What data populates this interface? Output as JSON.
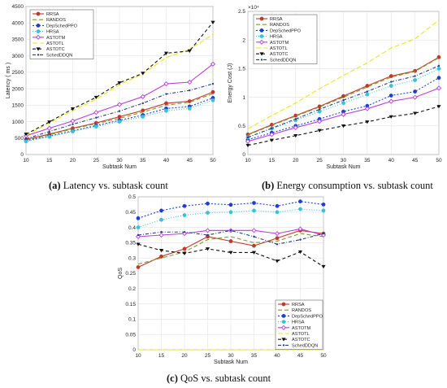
{
  "captions": {
    "a_label": "(a)",
    "a_text": "Latency vs. subtask count",
    "b_label": "(b)",
    "b_text": "Energy consumption vs. subtask count",
    "c_label": "(c)",
    "c_text": "QoS vs. subtask count"
  },
  "chart_data": [
    {
      "id": "a",
      "type": "line",
      "xlabel": "Subtask Num",
      "ylabel": "Latency ( ms )",
      "xlim": [
        10,
        50
      ],
      "ylim": [
        0,
        4500
      ],
      "xticks": [
        10,
        15,
        20,
        25,
        30,
        35,
        40,
        45,
        50
      ],
      "yticks": [
        0,
        500,
        1000,
        1500,
        2000,
        2500,
        3000,
        3500,
        4000,
        4500
      ],
      "grid": true,
      "legend_position": "top-left",
      "x": [
        10,
        15,
        20,
        25,
        30,
        35,
        40,
        45,
        50
      ],
      "series": [
        {
          "name": "RRSA",
          "color": "#c0392b",
          "marker": "circle",
          "dash": "",
          "values": [
            460,
            620,
            800,
            960,
            1150,
            1340,
            1560,
            1620,
            1900
          ]
        },
        {
          "name": "RANDOS",
          "color": "#7f9a2e",
          "marker": "none",
          "dash": "5,3",
          "values": [
            440,
            600,
            780,
            940,
            1100,
            1290,
            1500,
            1590,
            1850
          ]
        },
        {
          "name": "DepSchedPPO",
          "color": "#1f3fd1",
          "marker": "circle",
          "dash": "2,2",
          "values": [
            420,
            560,
            720,
            880,
            1040,
            1200,
            1400,
            1460,
            1720
          ]
        },
        {
          "name": "HRSA",
          "color": "#35c4d8",
          "marker": "circle",
          "dash": "1,2",
          "values": [
            400,
            540,
            700,
            850,
            1000,
            1150,
            1330,
            1400,
            1650
          ]
        },
        {
          "name": "ASTOTM",
          "color": "#b43fd6",
          "marker": "diamond",
          "dash": "",
          "values": [
            570,
            800,
            1020,
            1280,
            1520,
            1760,
            2150,
            2200,
            2750
          ]
        },
        {
          "name": "ASTOTL",
          "color": "#e8e81a",
          "marker": "none",
          "dash": "6,3",
          "values": [
            580,
            960,
            1330,
            1680,
            2120,
            2450,
            2950,
            3200,
            3650
          ]
        },
        {
          "name": "ASTOTC",
          "color": "#111111",
          "marker": "triangle-down",
          "dash": "4,3",
          "values": [
            620,
            990,
            1390,
            1740,
            2180,
            2470,
            3080,
            3150,
            4020
          ]
        },
        {
          "name": "SchedDDQN",
          "color": "#2a3a8a",
          "marker": "dot",
          "dash": "4,2,1,2",
          "values": [
            480,
            700,
            920,
            1120,
            1320,
            1560,
            1840,
            1950,
            2150
          ]
        }
      ]
    },
    {
      "id": "b",
      "type": "line",
      "xlabel": "Subtask Num",
      "ylabel": "Energy Cost (J)",
      "exponent": "×10⁴",
      "xlim": [
        10,
        50
      ],
      "ylim": [
        0,
        2.5
      ],
      "xticks": [
        10,
        15,
        20,
        25,
        30,
        35,
        40,
        45,
        50
      ],
      "yticks": [
        0,
        0.5,
        1,
        1.5,
        2,
        2.5
      ],
      "grid": true,
      "legend_position": "top-left",
      "x": [
        10,
        15,
        20,
        25,
        30,
        35,
        40,
        45,
        50
      ],
      "series": [
        {
          "name": "RRSA",
          "color": "#c0392b",
          "marker": "circle",
          "dash": "",
          "values": [
            0.35,
            0.52,
            0.68,
            0.84,
            1.02,
            1.2,
            1.37,
            1.46,
            1.7
          ]
        },
        {
          "name": "RANDOS",
          "color": "#7f9a2e",
          "marker": "none",
          "dash": "5,3",
          "values": [
            0.34,
            0.51,
            0.67,
            0.83,
            1.0,
            1.18,
            1.35,
            1.45,
            1.69
          ]
        },
        {
          "name": "DepSchedPPO",
          "color": "#1f3fd1",
          "marker": "circle",
          "dash": "2,2",
          "values": [
            0.26,
            0.38,
            0.5,
            0.62,
            0.75,
            0.85,
            1.03,
            1.1,
            1.34
          ]
        },
        {
          "name": "HRSA",
          "color": "#35c4d8",
          "marker": "circle",
          "dash": "1,2",
          "values": [
            0.3,
            0.45,
            0.6,
            0.75,
            0.9,
            1.05,
            1.2,
            1.3,
            1.5
          ]
        },
        {
          "name": "ASTOTM",
          "color": "#b43fd6",
          "marker": "diamond",
          "dash": "",
          "values": [
            0.23,
            0.35,
            0.47,
            0.58,
            0.7,
            0.8,
            0.93,
            1.0,
            1.16
          ]
        },
        {
          "name": "ASTOTL",
          "color": "#e8e81a",
          "marker": "none",
          "dash": "6,3",
          "values": [
            0.45,
            0.68,
            0.9,
            1.15,
            1.38,
            1.6,
            1.86,
            2.02,
            2.35
          ]
        },
        {
          "name": "ASTOTC",
          "color": "#111111",
          "marker": "triangle-down",
          "dash": "4,3",
          "values": [
            0.16,
            0.25,
            0.33,
            0.42,
            0.5,
            0.57,
            0.66,
            0.72,
            0.84
          ]
        },
        {
          "name": "SchedDDQN",
          "color": "#2a3a8a",
          "marker": "dot",
          "dash": "4,2,1,2",
          "values": [
            0.3,
            0.46,
            0.62,
            0.79,
            0.95,
            1.1,
            1.27,
            1.37,
            1.55
          ]
        }
      ]
    },
    {
      "id": "c",
      "type": "line",
      "xlabel": "Subtask Num",
      "ylabel": "QoS",
      "xlim": [
        10,
        50
      ],
      "ylim": [
        0,
        0.5
      ],
      "xticks": [
        10,
        15,
        20,
        25,
        30,
        35,
        40,
        45,
        50
      ],
      "yticks": [
        0,
        0.05,
        0.1,
        0.15,
        0.2,
        0.25,
        0.3,
        0.35,
        0.4,
        0.45,
        0.5
      ],
      "grid": true,
      "legend_position": "bottom-right",
      "x": [
        10,
        15,
        20,
        25,
        30,
        35,
        40,
        45,
        50
      ],
      "series": [
        {
          "name": "RRSA",
          "color": "#c0392b",
          "marker": "circle",
          "dash": "",
          "values": [
            0.27,
            0.305,
            0.33,
            0.37,
            0.355,
            0.34,
            0.365,
            0.39,
            0.38
          ]
        },
        {
          "name": "RANDOS",
          "color": "#7f9a2e",
          "marker": "none",
          "dash": "5,3",
          "values": [
            0.28,
            0.3,
            0.32,
            0.36,
            0.37,
            0.35,
            0.355,
            0.38,
            0.37
          ]
        },
        {
          "name": "DepSchedPPO",
          "color": "#1f3fd1",
          "marker": "circle",
          "dash": "2,2",
          "values": [
            0.43,
            0.455,
            0.47,
            0.478,
            0.474,
            0.48,
            0.47,
            0.485,
            0.475
          ]
        },
        {
          "name": "HRSA",
          "color": "#35c4d8",
          "marker": "circle",
          "dash": "1,2",
          "values": [
            0.4,
            0.425,
            0.44,
            0.448,
            0.45,
            0.455,
            0.45,
            0.46,
            0.455
          ]
        },
        {
          "name": "ASTOTM",
          "color": "#b43fd6",
          "marker": "diamond",
          "dash": "",
          "values": [
            0.37,
            0.375,
            0.38,
            0.39,
            0.39,
            0.39,
            0.38,
            0.395,
            0.375
          ]
        },
        {
          "name": "ASTOTL",
          "color": "#e8e81a",
          "marker": "none",
          "dash": "6,3",
          "values": [
            0.0,
            0.0,
            0.0,
            0.0,
            0.0,
            0.0,
            0.0,
            0.0,
            0.0
          ]
        },
        {
          "name": "ASTOTC",
          "color": "#111111",
          "marker": "triangle-down",
          "dash": "4,3",
          "values": [
            0.345,
            0.325,
            0.315,
            0.33,
            0.318,
            0.318,
            0.29,
            0.32,
            0.272
          ]
        },
        {
          "name": "SchedDDQN",
          "color": "#2a3a8a",
          "marker": "dot",
          "dash": "4,2,1,2",
          "values": [
            0.375,
            0.385,
            0.385,
            0.375,
            0.39,
            0.37,
            0.345,
            0.36,
            0.38
          ]
        }
      ]
    }
  ]
}
